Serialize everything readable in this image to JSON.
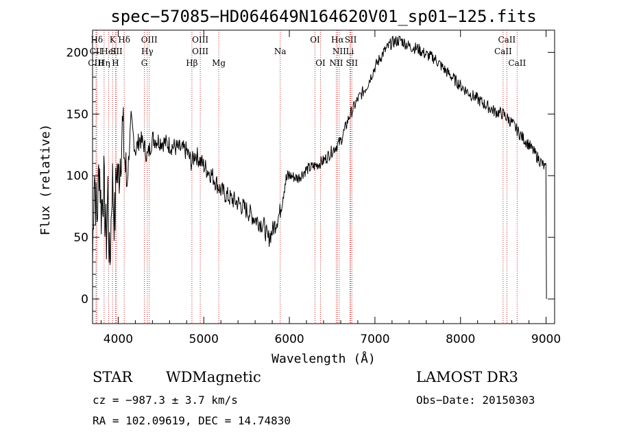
{
  "chart_data": {
    "type": "line",
    "title": "spec−57085−HD064649N164620V01_sp01−125.fits",
    "xlabel": "Wavelength (Å)",
    "ylabel": "Flux (relative)",
    "xlim": [
      3700,
      9100
    ],
    "ylim": [
      -20,
      218
    ],
    "xticks": [
      4000,
      5000,
      6000,
      7000,
      8000,
      9000
    ],
    "yticks": [
      0,
      50,
      100,
      150,
      200
    ],
    "series": [
      {
        "name": "spectrum",
        "x": [
          3700,
          3720,
          3750,
          3780,
          3800,
          3830,
          3860,
          3880,
          3900,
          3930,
          3960,
          3980,
          4000,
          4050,
          4100,
          4150,
          4200,
          4250,
          4300,
          4340,
          4400,
          4500,
          4600,
          4700,
          4800,
          4860,
          4900,
          5000,
          5100,
          5200,
          5300,
          5400,
          5500,
          5600,
          5700,
          5750,
          5800,
          5890,
          5950,
          6000,
          6100,
          6200,
          6300,
          6400,
          6500,
          6560,
          6600,
          6700,
          6800,
          6900,
          7000,
          7100,
          7200,
          7300,
          7400,
          7500,
          7600,
          7700,
          7800,
          7900,
          8000,
          8100,
          8200,
          8300,
          8400,
          8500,
          8600,
          8700,
          8800,
          8900,
          9000
        ],
        "y": [
          30,
          110,
          60,
          115,
          70,
          95,
          45,
          90,
          20,
          100,
          60,
          110,
          95,
          140,
          90,
          145,
          120,
          130,
          125,
          115,
          130,
          128,
          125,
          122,
          120,
          110,
          118,
          108,
          100,
          88,
          82,
          78,
          72,
          65,
          60,
          48,
          55,
          70,
          95,
          100,
          98,
          105,
          108,
          112,
          120,
          125,
          128,
          148,
          162,
          172,
          188,
          200,
          208,
          210,
          205,
          203,
          198,
          195,
          187,
          180,
          173,
          167,
          162,
          157,
          152,
          150,
          143,
          133,
          125,
          115,
          105
        ]
      }
    ],
    "lines_top": [
      {
        "label": "Hδ",
        "x": 3750
      },
      {
        "label": "K",
        "x": 3934
      },
      {
        "label": "Hδ",
        "x": 4070
      },
      {
        "label": "OIII",
        "x": 4363
      },
      {
        "label": "OIII",
        "x": 4959
      },
      {
        "label": "OI",
        "x": 6300
      },
      {
        "label": "Hα",
        "x": 6563
      },
      {
        "label": "SII",
        "x": 6717
      },
      {
        "label": "CaII",
        "x": 8542
      }
    ],
    "lines_mid": [
      {
        "label": "CII",
        "x": 3740
      },
      {
        "label": "HeI",
        "x": 3889
      },
      {
        "label": "SII",
        "x": 3980
      },
      {
        "label": "Hγ",
        "x": 4340
      },
      {
        "label": "OIII",
        "x": 4959
      },
      {
        "label": "Na",
        "x": 5893
      },
      {
        "label": "NII",
        "x": 6583
      },
      {
        "label": "Li",
        "x": 6708
      },
      {
        "label": "CaII",
        "x": 8498
      }
    ],
    "lines_low": [
      {
        "label": "CIII",
        "x": 3740
      },
      {
        "label": "Hη",
        "x": 3835
      },
      {
        "label": "H",
        "x": 3968
      },
      {
        "label": "G",
        "x": 4305
      },
      {
        "label": "Hβ",
        "x": 4861
      },
      {
        "label": "Mg",
        "x": 5175
      },
      {
        "label": "OI",
        "x": 6364
      },
      {
        "label": "NII",
        "x": 6548
      },
      {
        "label": "SII",
        "x": 6731
      },
      {
        "label": "CaII",
        "x": 8662
      }
    ]
  },
  "footer": {
    "object_type": "STAR",
    "subclass": "WDMagnetic",
    "survey": "LAMOST DR3",
    "cz": "cz = −987.3 ± 3.7 km/s",
    "obs_date": "Obs−Date: 20150303",
    "coords": "RA = 102.09619, DEC =  14.74830"
  }
}
